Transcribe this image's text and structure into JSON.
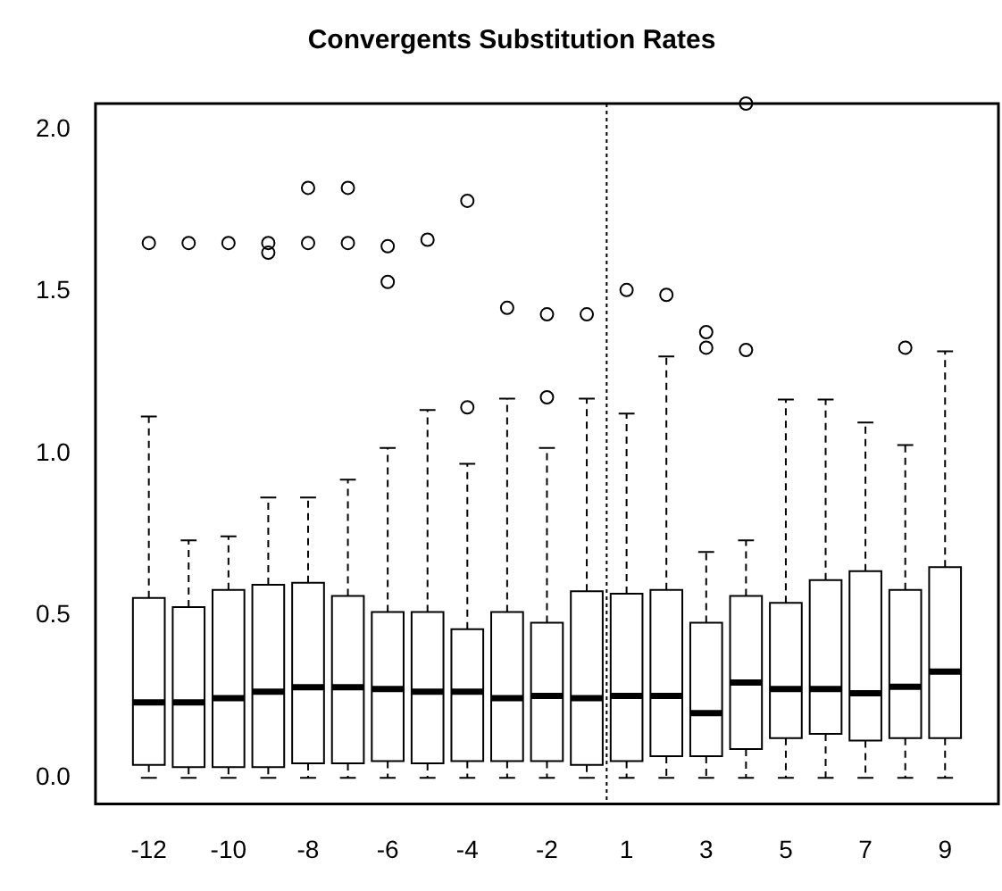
{
  "chart_data": {
    "type": "box",
    "title": "Convergents Substitution Rates",
    "categories": [
      "-12",
      null,
      "-10",
      null,
      "-8",
      null,
      "-6",
      null,
      "-4",
      null,
      "-2",
      null,
      "1",
      null,
      "3",
      null,
      "5",
      null,
      "7",
      null,
      "9"
    ],
    "boxes": [
      {
        "low": 0,
        "q1": 0.04,
        "median": 0.233,
        "q3": 0.555,
        "high": 1.115,
        "outliers": [
          1.65
        ]
      },
      {
        "low": 0,
        "q1": 0.033,
        "median": 0.233,
        "q3": 0.527,
        "high": 0.733,
        "outliers": [
          1.65
        ]
      },
      {
        "low": 0,
        "q1": 0.033,
        "median": 0.246,
        "q3": 0.58,
        "high": 0.745,
        "outliers": [
          1.65
        ]
      },
      {
        "low": 0,
        "q1": 0.033,
        "median": 0.266,
        "q3": 0.596,
        "high": 0.865,
        "outliers": [
          1.65,
          1.62
        ]
      },
      {
        "low": 0,
        "q1": 0.045,
        "median": 0.28,
        "q3": 0.602,
        "high": 0.865,
        "outliers": [
          1.65,
          1.82
        ]
      },
      {
        "low": 0,
        "q1": 0.045,
        "median": 0.28,
        "q3": 0.561,
        "high": 0.92,
        "outliers": [
          1.65,
          1.82
        ]
      },
      {
        "low": 0,
        "q1": 0.052,
        "median": 0.274,
        "q3": 0.512,
        "high": 1.018,
        "outliers": [
          1.64,
          1.53
        ]
      },
      {
        "low": 0,
        "q1": 0.045,
        "median": 0.266,
        "q3": 0.512,
        "high": 1.135,
        "outliers": [
          1.66
        ]
      },
      {
        "low": 0,
        "q1": 0.052,
        "median": 0.266,
        "q3": 0.459,
        "high": 0.969,
        "outliers": [
          1.143,
          1.78
        ]
      },
      {
        "low": 0,
        "q1": 0.052,
        "median": 0.246,
        "q3": 0.512,
        "high": 1.17,
        "outliers": [
          1.45
        ]
      },
      {
        "low": 0,
        "q1": 0.052,
        "median": 0.253,
        "q3": 0.479,
        "high": 1.018,
        "outliers": [
          1.174,
          1.43
        ]
      },
      {
        "low": 0,
        "q1": 0.04,
        "median": 0.246,
        "q3": 0.576,
        "high": 1.17,
        "outliers": [
          1.43
        ]
      },
      {
        "low": 0,
        "q1": 0.052,
        "median": 0.253,
        "q3": 0.568,
        "high": 1.124,
        "outliers": [
          1.505
        ]
      },
      {
        "low": 0,
        "q1": 0.067,
        "median": 0.253,
        "q3": 0.58,
        "high": 1.3,
        "outliers": [
          1.49
        ]
      },
      {
        "low": 0,
        "q1": 0.067,
        "median": 0.2,
        "q3": 0.479,
        "high": 0.697,
        "outliers": [
          1.375,
          1.327
        ]
      },
      {
        "low": 0,
        "q1": 0.089,
        "median": 0.294,
        "q3": 0.561,
        "high": 0.733,
        "outliers": [
          1.32,
          2.08
        ]
      },
      {
        "low": 0,
        "q1": 0.123,
        "median": 0.274,
        "q3": 0.54,
        "high": 1.167
      },
      {
        "low": 0,
        "q1": 0.136,
        "median": 0.274,
        "q3": 0.61,
        "high": 1.167
      },
      {
        "low": 0,
        "q1": 0.115,
        "median": 0.261,
        "q3": 0.638,
        "high": 1.096
      },
      {
        "low": 0,
        "q1": 0.123,
        "median": 0.281,
        "q3": 0.58,
        "high": 1.027,
        "outliers": [
          1.327
        ]
      },
      {
        "low": 0,
        "q1": 0.123,
        "median": 0.328,
        "q3": 0.65,
        "high": 1.316
      }
    ],
    "ylim": [
      -0.08,
      2.08
    ],
    "yticks": [
      {
        "value": 0,
        "label": "0.0"
      },
      {
        "value": 0.5,
        "label": "0.5"
      },
      {
        "value": 1,
        "label": "1.0"
      },
      {
        "value": 1.5,
        "label": "1.5"
      },
      {
        "value": 2,
        "label": "2.0"
      }
    ]
  }
}
